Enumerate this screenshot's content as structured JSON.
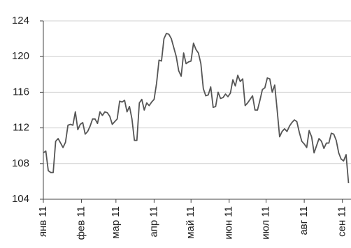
{
  "chart_data": {
    "type": "line",
    "x": [
      0,
      2,
      4,
      6,
      8,
      10,
      12,
      14,
      16,
      18,
      20,
      22,
      24,
      26,
      28,
      30,
      32,
      34,
      36,
      38,
      40,
      42,
      44,
      46,
      48,
      50,
      52,
      54,
      56,
      58,
      60,
      62,
      64,
      66,
      68,
      70,
      72,
      74,
      76,
      78,
      80,
      82,
      84,
      86,
      88,
      90,
      92,
      94,
      96,
      98,
      100,
      102,
      104,
      106,
      108,
      110,
      112,
      114,
      116,
      118,
      120,
      122,
      124,
      126,
      128,
      130,
      132,
      134,
      136,
      138,
      140,
      142,
      144,
      146,
      148,
      150,
      152,
      154,
      156,
      158,
      160,
      162,
      164,
      166,
      168,
      170,
      172,
      174,
      176,
      178,
      180,
      182,
      184,
      186,
      188,
      190,
      192,
      194,
      196,
      198,
      200,
      202,
      204,
      206,
      208,
      210,
      212,
      214,
      216,
      218,
      220,
      222,
      224,
      226,
      228,
      230,
      232,
      234,
      236,
      238,
      240,
      242,
      244,
      246,
      248
    ],
    "series": [
      {
        "color": "#555555",
        "values": [
          109.2,
          109.4,
          107.2,
          107.0,
          107.0,
          110.5,
          110.8,
          110.3,
          109.8,
          110.4,
          112.3,
          112.4,
          112.3,
          113.8,
          111.8,
          112.4,
          112.6,
          111.3,
          111.6,
          112.2,
          113.0,
          113.0,
          112.5,
          113.8,
          113.4,
          113.8,
          113.7,
          113.3,
          112.4,
          112.7,
          113.0,
          115.0,
          114.9,
          115.1,
          113.8,
          114.4,
          113.0,
          110.6,
          110.6,
          114.8,
          115.2,
          114.0,
          114.8,
          114.5,
          114.9,
          115.2,
          117.0,
          119.6,
          119.5,
          122.0,
          122.6,
          122.5,
          122.0,
          121.0,
          120.0,
          118.4,
          117.8,
          120.4,
          119.2,
          119.4,
          119.5,
          121.5,
          120.8,
          120.4,
          119.2,
          116.4,
          115.6,
          115.7,
          116.6,
          114.3,
          114.4,
          116.0,
          115.3,
          115.4,
          115.8,
          115.5,
          115.9,
          117.4,
          116.7,
          117.9,
          117.2,
          117.5,
          114.5,
          114.8,
          115.2,
          115.6,
          114.0,
          114.0,
          115.1,
          116.3,
          116.5,
          117.6,
          117.5,
          116.0,
          116.8,
          114.0,
          111.0,
          111.6,
          111.9,
          111.6,
          112.2,
          112.6,
          112.9,
          112.7,
          111.5,
          110.5,
          110.2,
          109.8,
          111.7,
          111.0,
          109.2,
          110.0,
          110.8,
          110.5,
          109.7,
          110.3,
          110.3,
          111.4,
          111.3,
          110.6,
          109.2,
          108.5,
          108.3,
          109.0,
          105.8
        ]
      }
    ],
    "xlim": [
      0,
      250
    ],
    "xticks": [
      {
        "value": 0,
        "label": "янв 11"
      },
      {
        "value": 31,
        "label": "фев 11"
      },
      {
        "value": 59,
        "label": "мар 11"
      },
      {
        "value": 90,
        "label": "апр 11"
      },
      {
        "value": 120,
        "label": "май 11"
      },
      {
        "value": 151,
        "label": "июн 11"
      },
      {
        "value": 181,
        "label": "июл 11"
      },
      {
        "value": 212,
        "label": "авг 11"
      },
      {
        "value": 243,
        "label": "сен 11"
      }
    ],
    "ylim": [
      104,
      124
    ],
    "yticks": [
      104,
      108,
      112,
      116,
      120,
      124
    ],
    "grid": true
  }
}
